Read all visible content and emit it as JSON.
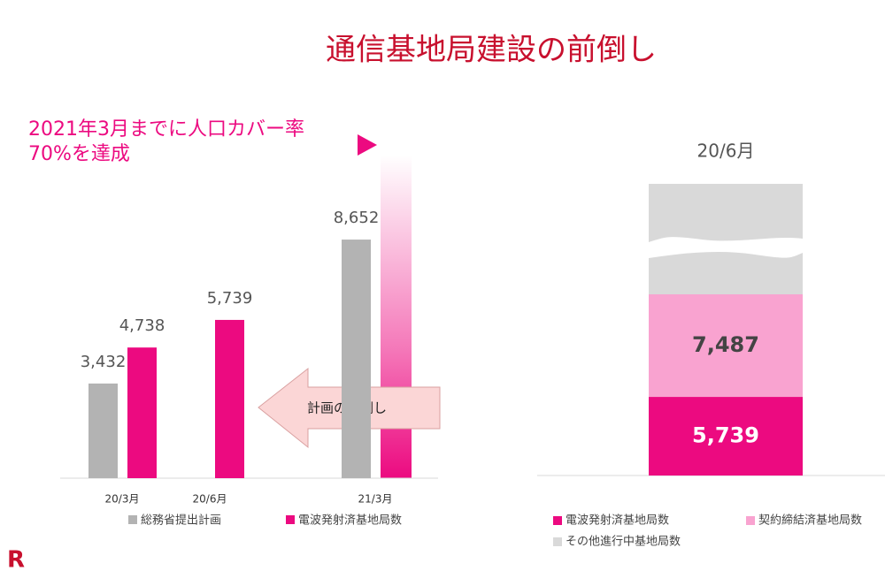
{
  "title": "通信基地局建設の前倒し",
  "annotation": [
    "2021年3月までに人口カバー率",
    "70%を達成"
  ],
  "arrow_label": "計画の前倒し",
  "logo": "R",
  "chart_data": [
    {
      "type": "bar",
      "categories": [
        "20/3月",
        "20/6月",
        "21/3月"
      ],
      "series": [
        {
          "name": "総務省提出計画",
          "color": "#b3b3b3",
          "values": [
            3432,
            null,
            8652
          ],
          "value_labels": [
            "3,432",
            null,
            "8,652"
          ]
        },
        {
          "name": "電波発射済基地局数",
          "color": "#ec0a80",
          "values": [
            4738,
            5739,
            null
          ],
          "value_labels": [
            "4,738",
            "5,739",
            null
          ]
        }
      ]
    },
    {
      "type": "stacked-bar",
      "categories": [
        "20/6月"
      ],
      "series": [
        {
          "name": "電波発射済基地局数",
          "color": "#ec0a80",
          "values": [
            5739
          ],
          "value_labels": [
            "5,739"
          ]
        },
        {
          "name": "契約締結済基地局数",
          "color": "#f9a3d0",
          "values": [
            7487
          ],
          "value_labels": [
            "7,487"
          ]
        },
        {
          "name": "その他進行中基地局数",
          "color": "#d9d9d9",
          "values": [
            null
          ]
        }
      ]
    }
  ]
}
